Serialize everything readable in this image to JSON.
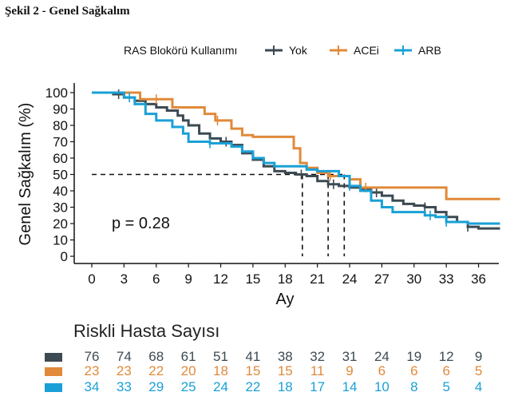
{
  "figure_title": "Şekil 2 - Genel Sağkalım",
  "chart_data": {
    "type": "line",
    "subtype": "kaplan-meier",
    "legend_title": "RAS Blokörü Kullanımı",
    "legend_position": "top",
    "xlabel": "Ay",
    "ylabel": "Genel Sağkalım (%)",
    "xlim": [
      0,
      38
    ],
    "ylim": [
      0,
      100
    ],
    "xticks": [
      0,
      3,
      6,
      9,
      12,
      15,
      18,
      21,
      24,
      27,
      30,
      33,
      36
    ],
    "yticks": [
      0,
      10,
      20,
      30,
      40,
      50,
      60,
      70,
      80,
      90,
      100
    ],
    "grid": false,
    "annotation": "p = 0.28",
    "median_line_y": 50,
    "median_x": [
      19.6,
      22.0,
      23.5
    ],
    "series": [
      {
        "name": "Yok",
        "color": "#3d4a52",
        "points": [
          [
            0,
            100
          ],
          [
            2,
            99
          ],
          [
            3,
            97
          ],
          [
            4,
            95
          ],
          [
            5,
            93
          ],
          [
            6,
            91
          ],
          [
            7,
            89
          ],
          [
            8,
            86
          ],
          [
            8.5,
            83
          ],
          [
            9,
            80
          ],
          [
            10,
            75
          ],
          [
            11,
            72
          ],
          [
            12,
            70
          ],
          [
            13,
            68
          ],
          [
            14,
            63
          ],
          [
            15,
            59
          ],
          [
            16,
            55
          ],
          [
            17,
            52
          ],
          [
            18,
            51
          ],
          [
            19,
            50
          ],
          [
            20,
            49
          ],
          [
            21,
            46
          ],
          [
            22,
            44
          ],
          [
            23,
            43
          ],
          [
            24,
            42
          ],
          [
            25,
            41
          ],
          [
            26,
            39
          ],
          [
            27,
            37
          ],
          [
            28,
            34
          ],
          [
            29,
            32
          ],
          [
            30,
            31
          ],
          [
            31,
            30
          ],
          [
            32,
            27
          ],
          [
            33,
            24
          ],
          [
            34,
            21
          ],
          [
            35,
            18
          ],
          [
            36,
            17
          ],
          [
            38,
            17
          ]
        ],
        "censor_x": [
          2.5,
          12.5,
          19.5,
          22.5,
          26.5,
          31,
          35
        ]
      },
      {
        "name": "ACEi",
        "color": "#e08a3a",
        "points": [
          [
            0,
            100
          ],
          [
            4.5,
            96
          ],
          [
            7.5,
            91
          ],
          [
            10.5,
            87
          ],
          [
            11.5,
            83
          ],
          [
            13,
            78
          ],
          [
            14,
            74
          ],
          [
            15,
            73
          ],
          [
            18.2,
            73
          ],
          [
            18.8,
            66
          ],
          [
            19.4,
            57
          ],
          [
            20,
            54
          ],
          [
            21,
            51
          ],
          [
            22,
            49
          ],
          [
            24,
            47
          ],
          [
            25,
            42
          ],
          [
            30,
            42
          ],
          [
            33,
            35
          ],
          [
            38,
            35
          ]
        ],
        "censor_x": [
          6,
          11.7,
          22.2,
          25.5
        ]
      },
      {
        "name": "ARB",
        "color": "#1aa0d6",
        "points": [
          [
            0,
            100
          ],
          [
            3,
            97
          ],
          [
            4,
            93
          ],
          [
            5,
            87
          ],
          [
            6,
            83
          ],
          [
            7.5,
            79
          ],
          [
            8.5,
            75
          ],
          [
            9,
            70
          ],
          [
            11,
            69
          ],
          [
            13,
            67
          ],
          [
            14,
            64
          ],
          [
            15,
            60
          ],
          [
            16,
            57
          ],
          [
            17,
            55
          ],
          [
            20,
            53
          ],
          [
            21,
            52
          ],
          [
            23,
            49
          ],
          [
            24,
            43
          ],
          [
            25,
            40
          ],
          [
            26,
            34
          ],
          [
            27,
            30
          ],
          [
            28,
            27
          ],
          [
            30,
            27
          ],
          [
            31,
            25
          ],
          [
            32,
            24
          ],
          [
            33,
            21
          ],
          [
            35,
            20
          ],
          [
            38,
            20
          ]
        ],
        "censor_x": [
          3.5,
          11,
          24,
          31.5,
          33
        ]
      }
    ]
  },
  "risk_table": {
    "title": "Riskli Hasta Sayısı",
    "times": [
      0,
      3,
      6,
      9,
      12,
      15,
      18,
      21,
      24,
      27,
      30,
      33,
      36
    ],
    "rows": [
      {
        "name": "Yok",
        "color": "#3d4a52",
        "text_color": "#3d4a52",
        "values": [
          "76",
          "74",
          "68",
          "61",
          "51",
          "41",
          "38",
          "32",
          "31",
          "24",
          "19",
          "12",
          "9"
        ]
      },
      {
        "name": "ACEi",
        "color": "#e08a3a",
        "text_color": "#e08a3a",
        "values": [
          "23",
          "23",
          "22",
          "20",
          "18",
          "15",
          "15",
          "11",
          "9",
          "6",
          "6",
          "6",
          "5"
        ]
      },
      {
        "name": "ARB",
        "color": "#1aa0d6",
        "text_color": "#1aa0d6",
        "values": [
          "34",
          "33",
          "29",
          "25",
          "24",
          "22",
          "18",
          "17",
          "14",
          "10",
          "8",
          "5",
          "4"
        ]
      }
    ]
  }
}
